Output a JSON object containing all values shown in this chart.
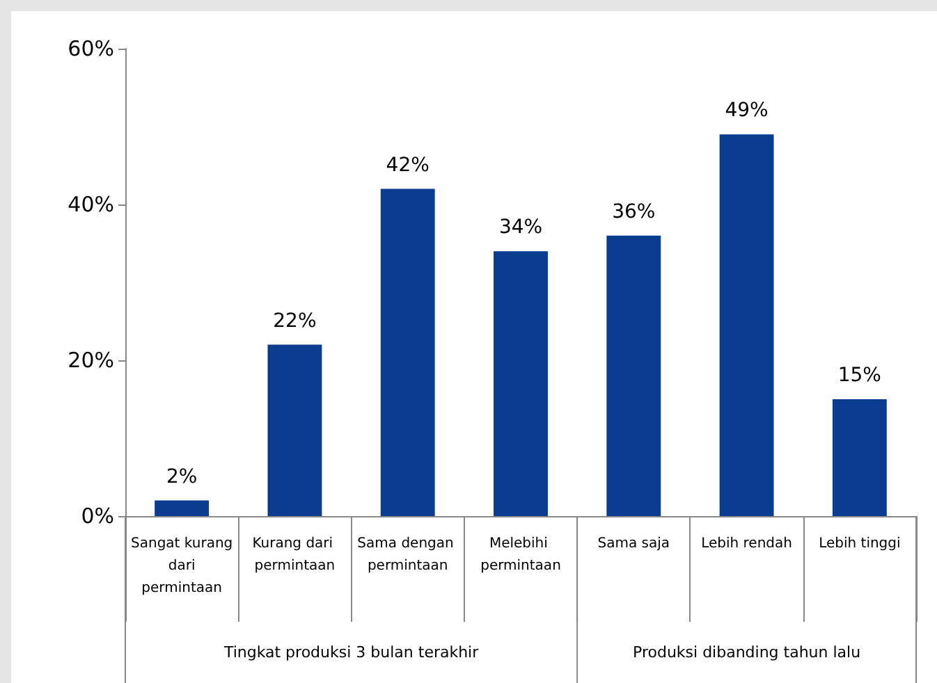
{
  "chart_data": {
    "type": "bar",
    "categories": [
      "Sangat kurang dari permintaan",
      "Kurang dari permintaan",
      "Sama dengan permintaan",
      "Melebihi permintaan",
      "Sama saja",
      "Lebih rendah",
      "Lebih tinggi"
    ],
    "values": [
      2,
      22,
      42,
      34,
      36,
      49,
      15
    ],
    "color": "#0a3d8f",
    "value_labels": [
      "2%",
      "22%",
      "42%",
      "34%",
      "36%",
      "49%",
      "15%"
    ],
    "ylim": [
      0,
      60
    ],
    "yticks": [
      {
        "value": 0,
        "label": "0%"
      },
      {
        "value": 20,
        "label": "20%"
      },
      {
        "value": 40,
        "label": "40%"
      },
      {
        "value": 60,
        "label": "60%"
      }
    ],
    "grid": false,
    "annotations": [
      "Tingkat produksi 3 bulan terakhir",
      "Produksi dibanding tahun lalu"
    ]
  }
}
